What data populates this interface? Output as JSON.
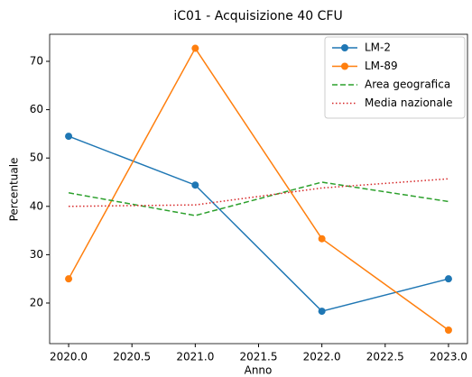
{
  "chart_data": {
    "type": "line",
    "title": "iC01 - Acquisizione 40 CFU",
    "xlabel": "Anno",
    "ylabel": "Percentuale",
    "x": [
      2020,
      2021,
      2022,
      2023
    ],
    "series": [
      {
        "name": "LM-2",
        "color": "#1f77b4",
        "linestyle": "solid",
        "marker": "o",
        "values": [
          54.5,
          44.4,
          18.3,
          25.0
        ]
      },
      {
        "name": "LM-89",
        "color": "#ff7f0e",
        "linestyle": "solid",
        "marker": "o",
        "values": [
          25.0,
          72.7,
          33.3,
          14.4
        ]
      },
      {
        "name": "Area geografica",
        "color": "#2ca02c",
        "linestyle": "dashed",
        "values": [
          42.8,
          38.1,
          45.0,
          41.0
        ]
      },
      {
        "name": "Media nazionale",
        "color": "#d62728",
        "linestyle": "dotted",
        "values": [
          40.0,
          40.3,
          43.8,
          45.7
        ]
      }
    ],
    "xlim": [
      2019.85,
      2023.15
    ],
    "xticks": [
      {
        "value": 2020,
        "label": "2020.0"
      },
      {
        "value": 2020.5,
        "label": "2020.5"
      },
      {
        "value": 2021,
        "label": "2021.0"
      },
      {
        "value": 2021.5,
        "label": "2021.5"
      },
      {
        "value": 2022,
        "label": "2022.0"
      },
      {
        "value": 2022.5,
        "label": "2022.5"
      },
      {
        "value": 2023,
        "label": "2023.0"
      }
    ],
    "ylim": [
      11.6,
      75.6
    ],
    "yticks": [
      20,
      30,
      40,
      50,
      60,
      70
    ],
    "grid": false,
    "legend": "upper right"
  }
}
